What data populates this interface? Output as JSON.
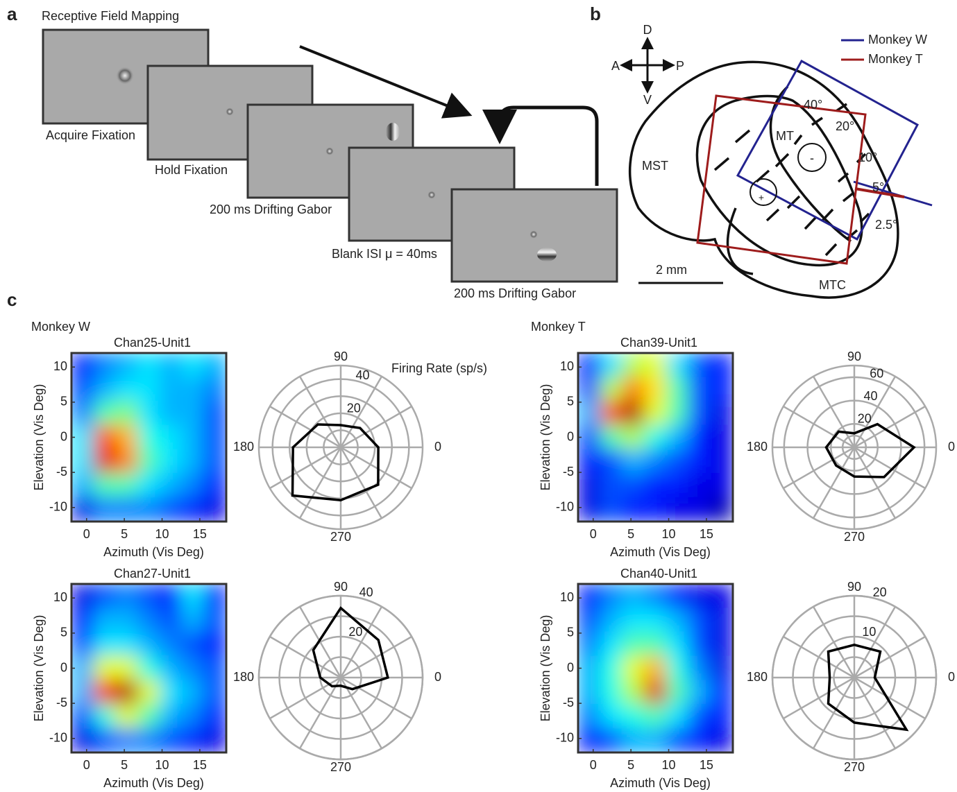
{
  "panel_labels": [
    "a",
    "b",
    "c"
  ],
  "panel_a": {
    "title": "Receptive Field Mapping",
    "captions": [
      "Acquire Fixation",
      "Hold Fixation",
      "200 ms Drifting Gabor",
      "Blank ISI μ = 40ms",
      "200 ms Drifting Gabor"
    ]
  },
  "panel_b": {
    "compass": [
      "D",
      "V",
      "A",
      "P"
    ],
    "legend": [
      {
        "name": "Monkey W",
        "color": "#23238f"
      },
      {
        "name": "Monkey T",
        "color": "#9e1c1c"
      }
    ],
    "areas": [
      "MST",
      "MT",
      "MTC"
    ],
    "eccentricities": [
      "40°",
      "20°",
      "10°",
      "5°",
      "2.5°"
    ],
    "signs": [
      "-",
      "+"
    ],
    "scale_bar": "2 mm"
  },
  "groups": [
    "Monkey W",
    "Monkey T"
  ],
  "chart_data": [
    {
      "type": "heatmap",
      "title": "Chan25-Unit1",
      "x_label": "Azimuth (Vis Deg)",
      "y_label": "Elevation (Vis Deg)",
      "xlim": [
        -2,
        18.5
      ],
      "ylim": [
        -12,
        12
      ],
      "xticks": [
        0,
        5,
        10,
        15
      ],
      "yticks": [
        10,
        5,
        0,
        -5,
        -10
      ],
      "colormap": "jet",
      "z": [
        [
          0.15,
          0.25,
          0.3,
          0.35,
          0.3,
          0.35,
          0.3
        ],
        [
          0.2,
          0.3,
          0.35,
          0.35,
          0.3,
          0.3,
          0.25
        ],
        [
          0.25,
          0.45,
          0.5,
          0.35,
          0.3,
          0.3,
          0.2
        ],
        [
          0.35,
          0.8,
          0.7,
          0.4,
          0.35,
          0.3,
          0.2
        ],
        [
          0.35,
          0.9,
          0.75,
          0.45,
          0.35,
          0.3,
          0.2
        ],
        [
          0.3,
          0.45,
          0.45,
          0.35,
          0.3,
          0.25,
          0.15
        ],
        [
          0.1,
          0.25,
          0.25,
          0.25,
          0.2,
          0.15,
          0.1
        ]
      ]
    },
    {
      "type": "polar",
      "r_label": "Firing Rate (sp/s)",
      "theta": [
        0,
        45,
        90,
        135,
        180,
        225,
        270,
        315
      ],
      "values": [
        22,
        16,
        13,
        19,
        28,
        40,
        31,
        31
      ],
      "rlim": [
        0,
        48
      ],
      "rticks": [
        20,
        40
      ],
      "rminor": [
        10,
        30
      ],
      "thetaticks": [
        0,
        90,
        180,
        270
      ],
      "spoke_step": 30,
      "color": "#000000"
    },
    {
      "type": "heatmap",
      "title": "Chan27-Unit1",
      "x_label": "Azimuth (Vis Deg)",
      "y_label": "Elevation (Vis Deg)",
      "xlim": [
        -2,
        18.5
      ],
      "ylim": [
        -12,
        12
      ],
      "xticks": [
        0,
        5,
        10,
        15
      ],
      "yticks": [
        10,
        5,
        0,
        -5,
        -10
      ],
      "colormap": "jet",
      "z": [
        [
          0.1,
          0.2,
          0.25,
          0.2,
          0.15,
          0.35,
          0.15
        ],
        [
          0.15,
          0.3,
          0.3,
          0.25,
          0.2,
          0.3,
          0.2
        ],
        [
          0.2,
          0.35,
          0.35,
          0.3,
          0.25,
          0.2,
          0.15
        ],
        [
          0.3,
          0.6,
          0.6,
          0.4,
          0.3,
          0.25,
          0.2
        ],
        [
          0.3,
          0.85,
          0.95,
          0.6,
          0.35,
          0.3,
          0.2
        ],
        [
          0.2,
          0.4,
          0.6,
          0.45,
          0.3,
          0.25,
          0.15
        ],
        [
          0.1,
          0.2,
          0.25,
          0.25,
          0.2,
          0.15,
          0.1
        ]
      ]
    },
    {
      "type": "polar",
      "theta": [
        0,
        45,
        90,
        135,
        180,
        225,
        270,
        315
      ],
      "values": [
        23,
        26,
        34,
        19,
        10,
        6,
        4,
        8
      ],
      "rlim": [
        0,
        40
      ],
      "rticks": [
        20,
        40
      ],
      "rminor": [
        10,
        30
      ],
      "thetaticks": [
        0,
        90,
        180,
        270
      ],
      "spoke_step": 30,
      "color": "#000000"
    },
    {
      "type": "heatmap",
      "title": "Chan39-Unit1",
      "x_label": "Azimuth (Vis Deg)",
      "y_label": "Elevation (Vis Deg)",
      "xlim": [
        -2,
        18.5
      ],
      "ylim": [
        -12,
        12
      ],
      "xticks": [
        0,
        5,
        10,
        15
      ],
      "yticks": [
        10,
        5,
        0,
        -5,
        -10
      ],
      "colormap": "jet",
      "z": [
        [
          0.15,
          0.35,
          0.55,
          0.6,
          0.35,
          0.2,
          0.15
        ],
        [
          0.2,
          0.55,
          0.75,
          0.65,
          0.45,
          0.2,
          0.15
        ],
        [
          0.3,
          0.8,
          0.95,
          0.6,
          0.45,
          0.2,
          0.1
        ],
        [
          0.2,
          0.45,
          0.55,
          0.4,
          0.3,
          0.15,
          0.1
        ],
        [
          0.15,
          0.2,
          0.3,
          0.25,
          0.2,
          0.15,
          0.1
        ],
        [
          0.1,
          0.2,
          0.2,
          0.15,
          0.15,
          0.1,
          0.1
        ],
        [
          0.1,
          0.2,
          0.15,
          0.15,
          0.1,
          0.1,
          0.05
        ]
      ]
    },
    {
      "type": "polar",
      "theta": [
        0,
        45,
        90,
        135,
        180,
        225,
        270,
        315
      ],
      "values": [
        51,
        28,
        12,
        19,
        24,
        22,
        25,
        36
      ],
      "rlim": [
        0,
        70
      ],
      "rticks": [
        20,
        40,
        60
      ],
      "rminor": [
        10
      ],
      "thetaticks": [
        0,
        90,
        180,
        270
      ],
      "spoke_step": 30,
      "color": "#000000"
    },
    {
      "type": "heatmap",
      "title": "Chan40-Unit1",
      "x_label": "Azimuth (Vis Deg)",
      "y_label": "Elevation (Vis Deg)",
      "xlim": [
        -2,
        18.5
      ],
      "ylim": [
        -12,
        12
      ],
      "xticks": [
        0,
        5,
        10,
        15
      ],
      "yticks": [
        10,
        5,
        0,
        -5,
        -10
      ],
      "colormap": "jet",
      "z": [
        [
          0.15,
          0.25,
          0.3,
          0.25,
          0.15,
          0.1,
          0.1
        ],
        [
          0.2,
          0.3,
          0.35,
          0.35,
          0.3,
          0.2,
          0.1
        ],
        [
          0.25,
          0.35,
          0.45,
          0.45,
          0.35,
          0.2,
          0.1
        ],
        [
          0.3,
          0.4,
          0.6,
          0.7,
          0.4,
          0.25,
          0.1
        ],
        [
          0.3,
          0.4,
          0.55,
          0.9,
          0.45,
          0.3,
          0.15
        ],
        [
          0.25,
          0.35,
          0.4,
          0.45,
          0.35,
          0.2,
          0.15
        ],
        [
          0.15,
          0.2,
          0.3,
          0.3,
          0.2,
          0.15,
          0.1
        ]
      ]
    },
    {
      "type": "polar",
      "theta": [
        0,
        45,
        90,
        135,
        180,
        225,
        270,
        315
      ],
      "values": [
        5,
        9,
        8,
        9,
        6,
        9,
        11,
        18
      ],
      "rlim": [
        0,
        20
      ],
      "rticks": [
        10,
        20
      ],
      "rminor": [
        5,
        15
      ],
      "thetaticks": [
        0,
        90,
        180,
        270
      ],
      "spoke_step": 30,
      "color": "#000000"
    }
  ]
}
